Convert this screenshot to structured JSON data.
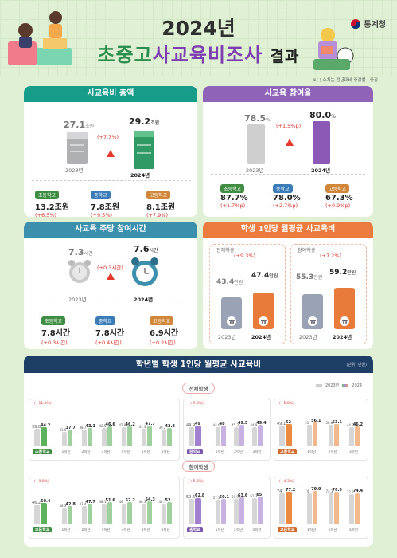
{
  "header": {
    "year_title": "2024년",
    "title_part1": "초중고",
    "title_part2": "사교육비조사",
    "title_part3": "결과",
    "logo": "통계청",
    "note": "※(   ) 수치는 전년대비 증감률 · 증감"
  },
  "years": {
    "prev": "2023년",
    "cur": "2024년",
    "cur_plain": "2024"
  },
  "schools": {
    "elementary": "초등학교",
    "middle": "중학교",
    "high": "고등학교"
  },
  "cards": {
    "total": {
      "title": "사교육비 총액",
      "unit": "조원",
      "prev_value": "27.1",
      "cur_value": "29.2",
      "change": "(+7.7%)",
      "items": [
        {
          "value": "13.2조원",
          "change": "(+6.5%)"
        },
        {
          "value": "7.8조원",
          "change": "(+9.5%)"
        },
        {
          "value": "8.1조원",
          "change": "(+7.9%)"
        }
      ]
    },
    "rate": {
      "title": "사교육 참여율",
      "unit": "%",
      "prev_value": "78.5",
      "cur_value": "80.0",
      "change": "(+1.5%p)",
      "items": [
        {
          "value": "87.7%",
          "change": "(+1.7%p)"
        },
        {
          "value": "78.0%",
          "change": "(+2.7%p)"
        },
        {
          "value": "67.3%",
          "change": "(+0.9%p)"
        }
      ]
    },
    "hours": {
      "title": "사교육 주당 참여시간",
      "unit": "시간",
      "prev_value": "7.3",
      "cur_value": "7.6",
      "change": "(+0.3시간)",
      "items": [
        {
          "value": "7.8시간",
          "change": "(+0.3시간)"
        },
        {
          "value": "7.8시간",
          "change": "(+0.4시간)"
        },
        {
          "value": "6.9시간",
          "change": "(+0.2시간)"
        }
      ]
    },
    "monthly": {
      "title": "학생 1인당 월평균 사교육비",
      "unit": "만원",
      "all_label": "전체학생",
      "all_change": "(+9.3%)",
      "all_prev": "43.4",
      "all_cur": "47.4",
      "part_label": "참여학생",
      "part_change": "(+7.2%)",
      "part_prev": "55.3",
      "part_cur": "59.2"
    }
  },
  "grade_chart": {
    "title": "학년별 학생 1인당 월평균 사교육비",
    "unit": "(단위: 만원)",
    "section_all": "전체학생",
    "section_part": "참여학생"
  },
  "chart_data": [
    {
      "type": "bar",
      "section": "전체학생",
      "school": "초등학교",
      "categories": [
        "1학년",
        "2학년",
        "3학년",
        "4학년",
        "5학년",
        "6학년"
      ],
      "summary": {
        "prev": 39.8,
        "cur": 44.2,
        "change": "(+11.1%)"
      },
      "series": [
        {
          "name": "2023",
          "values": [
            33.6,
            38.7,
            42.5,
            43.8,
            41.3,
            39.2
          ]
        },
        {
          "name": "2024",
          "values": [
            37.7,
            43.1,
            46.6,
            46.2,
            47.7,
            42.8
          ]
        }
      ]
    },
    {
      "type": "bar",
      "section": "전체학생",
      "school": "중학교",
      "categories": [
        "1학년",
        "2학년",
        "3학년"
      ],
      "summary": {
        "prev": 44.9,
        "cur": 49.0,
        "change": "(+9.0%)"
      },
      "series": [
        {
          "name": "2023",
          "values": [
            44.6,
            45.3,
            44.9
          ]
        },
        {
          "name": "2024",
          "values": [
            48.0,
            49.5,
            49.4
          ]
        }
      ]
    },
    {
      "type": "bar",
      "section": "전체학생",
      "school": "고등학교",
      "categories": [
        "1학년",
        "2학년",
        "3학년"
      ],
      "summary": {
        "prev": 49.1,
        "cur": 52.0,
        "change": "(+5.8%)"
      },
      "series": [
        {
          "name": "2023",
          "values": [
            51.0,
            50.8,
            44.3
          ]
        },
        {
          "name": "2024",
          "values": [
            56.1,
            53.1,
            46.2
          ]
        }
      ]
    },
    {
      "type": "bar",
      "section": "참여학생",
      "school": "초등학교",
      "categories": [
        "1학년",
        "2학년",
        "3학년",
        "4학년",
        "5학년",
        "6학년"
      ],
      "summary": {
        "prev": 46.2,
        "cur": 50.4,
        "change": "(+9.0%)"
      },
      "series": [
        {
          "name": "2023",
          "values": [
            38.3,
            43.4,
            48.1,
            49.0,
            48.3,
            48.1
          ]
        },
        {
          "name": "2024",
          "values": [
            42.8,
            47.7,
            51.6,
            52.2,
            54.3,
            52.0
          ]
        }
      ]
    },
    {
      "type": "bar",
      "section": "참여학생",
      "school": "중학교",
      "categories": [
        "1학년",
        "2학년",
        "3학년"
      ],
      "summary": {
        "prev": 59.6,
        "cur": 62.8,
        "change": "(+5.3%)"
      },
      "series": [
        {
          "name": "2023",
          "values": [
            57.3,
            59.9,
            61.3
          ]
        },
        {
          "name": "2024",
          "values": [
            60.1,
            63.6,
            65.0
          ]
        }
      ]
    },
    {
      "type": "bar",
      "section": "참여학생",
      "school": "고등학교",
      "categories": [
        "1학년",
        "2학년",
        "3학년"
      ],
      "summary": {
        "prev": 74.0,
        "cur": 77.2,
        "change": "(+4.3%)"
      },
      "series": [
        {
          "name": "2023",
          "values": [
            74.0,
            74.3,
            72.2
          ]
        },
        {
          "name": "2024",
          "values": [
            79.9,
            76.9,
            74.4
          ]
        }
      ]
    }
  ]
}
